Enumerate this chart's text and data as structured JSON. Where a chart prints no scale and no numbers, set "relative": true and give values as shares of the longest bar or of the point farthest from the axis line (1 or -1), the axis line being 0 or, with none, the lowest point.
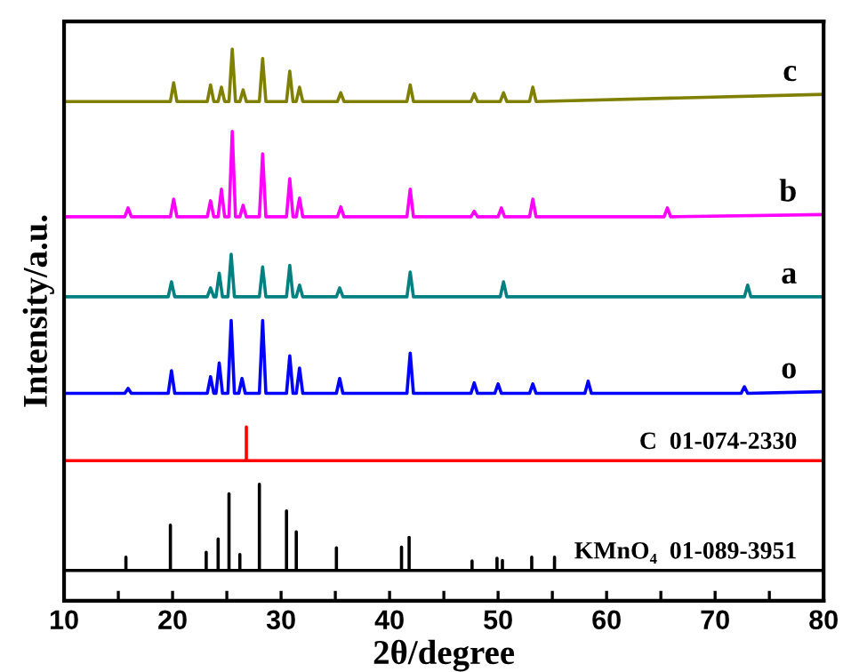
{
  "chart_data": {
    "type": "line",
    "relative": true,
    "xlabel": "2θ/degree",
    "ylabel": "Intensity/a.u.",
    "xlim": [
      10,
      80
    ],
    "xticks": [
      10,
      {
        "value": 15,
        "label": null
      },
      20,
      {
        "value": 25,
        "label": null
      },
      30,
      {
        "value": 35,
        "label": null
      },
      40,
      {
        "value": 45,
        "label": null
      },
      50,
      {
        "value": 55,
        "label": null
      },
      60,
      {
        "value": 65,
        "label": null
      },
      70,
      {
        "value": 75,
        "label": null
      },
      80
    ],
    "tick_labels": "x",
    "grid": false,
    "legend": false,
    "marker": "none",
    "line_style": "solid",
    "series": [
      {
        "name": "c",
        "color": "#808000",
        "x": [
          10,
          19.8,
          20.1,
          20.4,
          23.2,
          23.5,
          23.8,
          24.2,
          24.5,
          24.8,
          25.2,
          25.5,
          25.8,
          26.2,
          26.5,
          26.8,
          28.0,
          28.3,
          28.6,
          30.5,
          30.8,
          31.1,
          31.4,
          31.7,
          32.0,
          35.2,
          35.5,
          35.8,
          41.6,
          41.9,
          42.2,
          47.5,
          47.8,
          48.1,
          50.2,
          50.5,
          50.8,
          52.9,
          53.2,
          53.5,
          80
        ],
        "values": [
          0.905,
          0.905,
          0.939,
          0.905,
          0.905,
          0.935,
          0.905,
          0.905,
          0.931,
          0.905,
          0.905,
          1.0,
          0.905,
          0.905,
          0.926,
          0.905,
          0.905,
          0.983,
          0.905,
          0.905,
          0.96,
          0.905,
          0.905,
          0.931,
          0.905,
          0.905,
          0.921,
          0.905,
          0.905,
          0.935,
          0.905,
          0.905,
          0.919,
          0.905,
          0.905,
          0.921,
          0.905,
          0.905,
          0.931,
          0.905,
          0.918
        ]
      },
      {
        "name": "b",
        "color": "#ff00ff",
        "x": [
          10,
          15.6,
          15.9,
          16.2,
          19.8,
          20.1,
          20.4,
          23.2,
          23.5,
          23.8,
          24.2,
          24.5,
          24.8,
          25.2,
          25.5,
          25.8,
          26.2,
          26.5,
          26.8,
          28.0,
          28.3,
          28.6,
          30.5,
          30.8,
          31.1,
          31.4,
          31.7,
          32.0,
          35.2,
          35.5,
          35.8,
          41.6,
          41.9,
          42.2,
          47.5,
          47.8,
          48.1,
          50.0,
          50.3,
          50.6,
          52.9,
          53.2,
          53.5,
          65.3,
          65.6,
          65.9,
          80
        ],
        "values": [
          0.696,
          0.696,
          0.712,
          0.696,
          0.696,
          0.728,
          0.696,
          0.696,
          0.725,
          0.696,
          0.696,
          0.746,
          0.696,
          0.696,
          0.851,
          0.696,
          0.696,
          0.717,
          0.696,
          0.696,
          0.81,
          0.696,
          0.696,
          0.765,
          0.696,
          0.696,
          0.73,
          0.696,
          0.696,
          0.714,
          0.696,
          0.696,
          0.746,
          0.696,
          0.696,
          0.706,
          0.696,
          0.696,
          0.712,
          0.696,
          0.696,
          0.728,
          0.696,
          0.696,
          0.712,
          0.696,
          0.7
        ]
      },
      {
        "name": "a",
        "color": "#008080",
        "x": [
          10,
          19.6,
          19.9,
          20.2,
          23.2,
          23.5,
          23.8,
          24.0,
          24.3,
          24.6,
          25.1,
          25.4,
          25.7,
          28.0,
          28.3,
          28.6,
          30.5,
          30.8,
          31.1,
          31.4,
          31.7,
          32.0,
          35.1,
          35.4,
          35.7,
          41.6,
          41.9,
          42.2,
          50.2,
          50.5,
          50.8,
          72.7,
          73.0,
          73.3,
          80
        ],
        "values": [
          0.551,
          0.551,
          0.578,
          0.551,
          0.551,
          0.567,
          0.551,
          0.551,
          0.594,
          0.551,
          0.551,
          0.628,
          0.551,
          0.551,
          0.605,
          0.551,
          0.551,
          0.608,
          0.551,
          0.551,
          0.572,
          0.551,
          0.551,
          0.567,
          0.551,
          0.551,
          0.596,
          0.551,
          0.551,
          0.578,
          0.551,
          0.551,
          0.572,
          0.551,
          0.551
        ]
      },
      {
        "name": "o",
        "color": "#0000ff",
        "x": [
          10,
          15.6,
          15.9,
          16.2,
          19.6,
          19.9,
          20.2,
          23.2,
          23.5,
          23.8,
          24.0,
          24.3,
          24.6,
          25.1,
          25.4,
          25.7,
          26.1,
          26.4,
          26.7,
          28.0,
          28.3,
          28.6,
          30.5,
          30.8,
          31.1,
          31.4,
          31.7,
          32.0,
          35.1,
          35.4,
          35.7,
          41.6,
          41.9,
          42.2,
          47.5,
          47.8,
          48.1,
          49.7,
          50.0,
          50.3,
          52.9,
          53.2,
          53.5,
          58.0,
          58.3,
          58.6,
          72.4,
          72.7,
          73.0,
          80
        ],
        "values": [
          0.376,
          0.376,
          0.385,
          0.376,
          0.376,
          0.417,
          0.376,
          0.376,
          0.406,
          0.376,
          0.376,
          0.431,
          0.376,
          0.376,
          0.508,
          0.376,
          0.376,
          0.403,
          0.376,
          0.376,
          0.508,
          0.376,
          0.376,
          0.444,
          0.376,
          0.376,
          0.422,
          0.376,
          0.376,
          0.403,
          0.376,
          0.376,
          0.449,
          0.376,
          0.376,
          0.395,
          0.376,
          0.376,
          0.393,
          0.376,
          0.376,
          0.393,
          0.376,
          0.376,
          0.398,
          0.376,
          0.376,
          0.388,
          0.376,
          0.379
        ]
      },
      {
        "name": "C  01-074-2330",
        "color": "#ff0000",
        "x": [
          10,
          26.8,
          26.8,
          26.8,
          80
        ],
        "values": [
          0.254,
          0.254,
          0.315,
          0.254,
          0.254
        ]
      },
      {
        "name": "KMnO₄  01-089-3951",
        "color": "#000000",
        "x": [
          10,
          15.7,
          15.7,
          15.7,
          19.8,
          19.8,
          19.8,
          23.1,
          23.1,
          23.1,
          24.2,
          24.2,
          24.2,
          25.2,
          25.2,
          25.2,
          26.2,
          26.2,
          26.2,
          28.0,
          28.0,
          28.0,
          30.5,
          30.5,
          30.5,
          31.4,
          31.4,
          31.4,
          35.1,
          35.1,
          35.1,
          41.1,
          41.1,
          41.1,
          41.8,
          41.8,
          41.8,
          47.6,
          47.6,
          47.6,
          49.9,
          49.9,
          49.9,
          50.4,
          50.4,
          50.4,
          53.1,
          53.1,
          53.1,
          55.2,
          55.2,
          55.2,
          80
        ],
        "values": [
          0.055,
          0.055,
          0.079,
          0.055,
          0.055,
          0.137,
          0.055,
          0.055,
          0.088,
          0.055,
          0.055,
          0.112,
          0.055,
          0.055,
          0.194,
          0.055,
          0.055,
          0.084,
          0.055,
          0.055,
          0.211,
          0.055,
          0.055,
          0.163,
          0.055,
          0.055,
          0.125,
          0.055,
          0.055,
          0.096,
          0.055,
          0.055,
          0.097,
          0.055,
          0.055,
          0.115,
          0.055,
          0.055,
          0.072,
          0.055,
          0.055,
          0.077,
          0.055,
          0.055,
          0.073,
          0.055,
          0.055,
          0.079,
          0.055,
          0.055,
          0.079,
          0.055,
          0.055
        ]
      }
    ]
  }
}
